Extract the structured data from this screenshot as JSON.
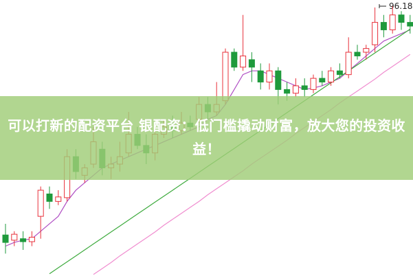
{
  "chart_data": {
    "type": "candlestick",
    "banner_title": "可以打新的配资平台 银配资：低门槛撬动财富，放大您的投资收益！",
    "high_label": "96.18",
    "ylim": [
      60,
      97
    ],
    "up_color": "#e8303a",
    "down_color": "#1f9a3c",
    "open": [
      65.5,
      64.8,
      65,
      64.6,
      68,
      71,
      70,
      70.5,
      76,
      73.5,
      75,
      77,
      74.5,
      75,
      76.5,
      79,
      77.5,
      76.5,
      79,
      80,
      79.5,
      80.5,
      81,
      83,
      82,
      83.5,
      90,
      88,
      89,
      87.5,
      86,
      87.5,
      85,
      84.5,
      85.5,
      85,
      86.5,
      86,
      87.5,
      87,
      90,
      90,
      91,
      94,
      93,
      95,
      94
    ],
    "close": [
      64.5,
      65.6,
      64.6,
      65.2,
      71.5,
      70,
      70.6,
      76,
      74,
      74.5,
      78,
      74.5,
      75,
      76,
      79,
      77.5,
      76.5,
      79,
      80,
      79.5,
      80.5,
      80,
      83,
      82,
      83,
      90,
      88,
      89.5,
      88,
      86,
      87.5,
      85,
      84.5,
      85.5,
      85,
      86.5,
      86,
      87.5,
      87,
      90,
      89.5,
      90.5,
      94,
      93,
      95,
      94,
      93.5
    ],
    "high": [
      67,
      66,
      66,
      66,
      72,
      72,
      71.5,
      77,
      77,
      75,
      80,
      78,
      76,
      78,
      82,
      80,
      79,
      80,
      81,
      81.5,
      82,
      81.5,
      84,
      84,
      86,
      90.5,
      90.5,
      95,
      90,
      88.5,
      88.5,
      88,
      86,
      86.5,
      86.5,
      87,
      87.5,
      88,
      88.5,
      92,
      91,
      91,
      96,
      95,
      96.18,
      95.5,
      95
    ],
    "low": [
      63,
      64,
      63.5,
      64,
      65,
      69,
      69.5,
      70,
      73,
      72.5,
      74.5,
      73.5,
      73,
      74,
      76,
      77,
      75,
      75.5,
      78.5,
      78.5,
      79,
      79.5,
      80.5,
      81,
      81.5,
      83,
      87.5,
      87.5,
      86,
      85,
      85,
      83,
      83.5,
      84,
      84,
      84.5,
      85.5,
      85.5,
      86.5,
      86.5,
      89,
      89,
      90,
      92,
      92.5,
      93,
      92.5
    ],
    "series": [
      {
        "color": "#b04fc4",
        "values": [
          64,
          64.5,
          64.8,
          65,
          66,
          67,
          68,
          70,
          71.5,
          72.5,
          73.5,
          74.5,
          75,
          75.5,
          76,
          76.5,
          77,
          77.5,
          78,
          78.5,
          79,
          79.5,
          80,
          81,
          81.5,
          83,
          85,
          87,
          87.5,
          87.5,
          87,
          86.5,
          86,
          85.5,
          85,
          85.2,
          85.5,
          86,
          86.5,
          87.5,
          88.5,
          89.5,
          90.5,
          91.5,
          92,
          92.5,
          93
        ]
      },
      {
        "color": "#f08ccf",
        "values": [
          null,
          null,
          null,
          null,
          null,
          null,
          null,
          null,
          null,
          null,
          60.2,
          61,
          61.8,
          62.7,
          63.5,
          64.3,
          65.1,
          65.9,
          66.8,
          67.6,
          68.4,
          69.2,
          70,
          70.9,
          71.7,
          72.5,
          73.3,
          74.1,
          75,
          75.8,
          76.6,
          77.4,
          78.2,
          79.1,
          79.9,
          80.7,
          81.5,
          82.3,
          83.2,
          84,
          84.8,
          85.6,
          86.4,
          87.3,
          88.1,
          88.9,
          89.7
        ]
      },
      {
        "color": "#3daa3d",
        "values": [
          null,
          null,
          null,
          null,
          null,
          60.3,
          61.1,
          61.9,
          62.7,
          63.5,
          64.3,
          65.1,
          65.9,
          66.7,
          67.5,
          68.3,
          69.1,
          69.9,
          70.7,
          71.5,
          72.3,
          73.1,
          73.9,
          74.7,
          75.5,
          76.3,
          77.1,
          77.9,
          78.7,
          79.5,
          80.3,
          81.1,
          81.9,
          82.7,
          83.5,
          84.3,
          85.1,
          85.9,
          86.7,
          87.5,
          88.3,
          89.1,
          89.9,
          90.7,
          91.5,
          92.3,
          93.1
        ]
      }
    ]
  }
}
